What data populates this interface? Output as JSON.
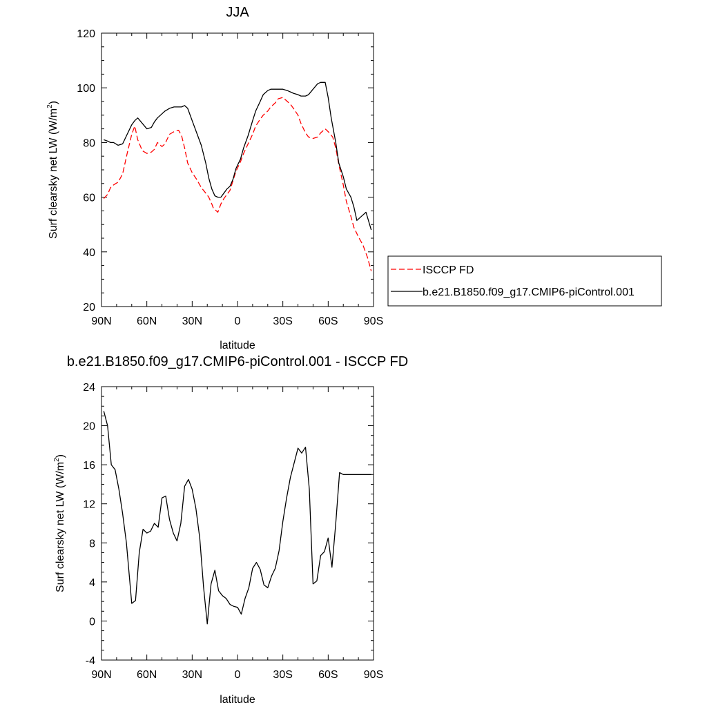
{
  "chart_data": [
    {
      "type": "line",
      "title": "JJA",
      "xlabel": "latitude",
      "ylabel": "Surf clearsky net LW (W/m",
      "ylabel_sup": "2",
      "ylabel_end": ")",
      "xlim": [
        90,
        -90
      ],
      "ylim": [
        20,
        120
      ],
      "x_ticks": [
        90,
        60,
        30,
        0,
        -30,
        -60,
        -90
      ],
      "x_tick_labels": [
        "90N",
        "60N",
        "30N",
        "0",
        "30S",
        "60S",
        "90S"
      ],
      "y_ticks": [
        20,
        40,
        60,
        80,
        100,
        120
      ],
      "y_tick_labels": [
        "20",
        "40",
        "60",
        "80",
        "100",
        "120"
      ],
      "legend_position": "right",
      "series": [
        {
          "name": "ISCCP FD",
          "color": "#ff0000",
          "style": "dashed",
          "points": [
            [
              88.5,
              59.5
            ],
            [
              86,
              61
            ],
            [
              84,
              63.5
            ],
            [
              82,
              64.5
            ],
            [
              79,
              65.5
            ],
            [
              76,
              68.5
            ],
            [
              73,
              76
            ],
            [
              70,
              83
            ],
            [
              68,
              86
            ],
            [
              66,
              81
            ],
            [
              63,
              77
            ],
            [
              60,
              76
            ],
            [
              57,
              76.5
            ],
            [
              55,
              77.5
            ],
            [
              53,
              80
            ],
            [
              50,
              78.5
            ],
            [
              48,
              79.5
            ],
            [
              45,
              83
            ],
            [
              42,
              84
            ],
            [
              39,
              84.5
            ],
            [
              37,
              82.5
            ],
            [
              35,
              78
            ],
            [
              33,
              72.5
            ],
            [
              30,
              69
            ],
            [
              27,
              66.5
            ],
            [
              24,
              63.5
            ],
            [
              21,
              61.5
            ],
            [
              19,
              60
            ],
            [
              17,
              57.5
            ],
            [
              16,
              56
            ],
            [
              13,
              54.5
            ],
            [
              11,
              57.5
            ],
            [
              9,
              59.5
            ],
            [
              7,
              61
            ],
            [
              5,
              62.5
            ],
            [
              3,
              66
            ],
            [
              1,
              69.5
            ],
            [
              -2,
              73
            ],
            [
              -4,
              76
            ],
            [
              -7,
              79.5
            ],
            [
              -10,
              83
            ],
            [
              -12,
              86
            ],
            [
              -15,
              88.5
            ],
            [
              -17,
              90
            ],
            [
              -20,
              91.5
            ],
            [
              -22,
              93
            ],
            [
              -25,
              94.5
            ],
            [
              -27,
              96
            ],
            [
              -30,
              96.5
            ],
            [
              -33,
              95
            ],
            [
              -35,
              94
            ],
            [
              -37,
              92.5
            ],
            [
              -40,
              90
            ],
            [
              -42,
              87
            ],
            [
              -45,
              83.5
            ],
            [
              -47,
              82
            ],
            [
              -50,
              81.5
            ],
            [
              -53,
              82
            ],
            [
              -55,
              83.5
            ],
            [
              -58,
              85
            ],
            [
              -60,
              84
            ],
            [
              -63,
              82
            ],
            [
              -65,
              78
            ],
            [
              -67,
              72
            ],
            [
              -70,
              64.5
            ],
            [
              -72,
              58.5
            ],
            [
              -75,
              53
            ],
            [
              -77,
              49
            ],
            [
              -80,
              45.5
            ],
            [
              -83,
              42.5
            ],
            [
              -86,
              38
            ],
            [
              -88.5,
              33
            ]
          ]
        },
        {
          "name": "b.e21.B1850.f09_g17.CMIP6-piControl.001",
          "color": "#000000",
          "style": "solid",
          "points": [
            [
              88.5,
              81
            ],
            [
              86,
              80.5
            ],
            [
              84,
              80
            ],
            [
              82,
              80
            ],
            [
              79,
              79
            ],
            [
              76,
              79.5
            ],
            [
              73,
              83
            ],
            [
              70,
              86.5
            ],
            [
              68,
              88
            ],
            [
              66,
              89
            ],
            [
              63,
              87
            ],
            [
              60,
              85
            ],
            [
              57,
              85.5
            ],
            [
              55,
              87.5
            ],
            [
              53,
              89
            ],
            [
              50,
              90.5
            ],
            [
              48,
              91.5
            ],
            [
              45,
              92.5
            ],
            [
              42,
              93
            ],
            [
              39,
              93
            ],
            [
              37,
              93
            ],
            [
              35,
              93.5
            ],
            [
              33,
              92.5
            ],
            [
              30,
              88
            ],
            [
              27,
              83.5
            ],
            [
              24,
              79
            ],
            [
              21,
              72.5
            ],
            [
              19,
              67
            ],
            [
              17,
              63
            ],
            [
              15,
              60.5
            ],
            [
              13,
              60
            ],
            [
              11,
              60
            ],
            [
              9,
              61.5
            ],
            [
              7,
              63
            ],
            [
              5,
              64
            ],
            [
              3,
              66.5
            ],
            [
              1,
              70.5
            ],
            [
              -2,
              74
            ],
            [
              -4,
              78
            ],
            [
              -7,
              82.5
            ],
            [
              -10,
              88
            ],
            [
              -12,
              91.5
            ],
            [
              -15,
              95
            ],
            [
              -17,
              97.5
            ],
            [
              -20,
              99
            ],
            [
              -22,
              99.5
            ],
            [
              -25,
              99.5
            ],
            [
              -27,
              99.5
            ],
            [
              -30,
              99.5
            ],
            [
              -33,
              99
            ],
            [
              -35,
              98.5
            ],
            [
              -37,
              98
            ],
            [
              -40,
              97.5
            ],
            [
              -42,
              97
            ],
            [
              -45,
              97
            ],
            [
              -47,
              97.5
            ],
            [
              -50,
              99.5
            ],
            [
              -53,
              101.5
            ],
            [
              -55,
              102
            ],
            [
              -58,
              102
            ],
            [
              -60,
              96.5
            ],
            [
              -62,
              89
            ],
            [
              -65,
              80
            ],
            [
              -67,
              72.5
            ],
            [
              -70,
              67.5
            ],
            [
              -72,
              63
            ],
            [
              -75,
              60
            ],
            [
              -77,
              56.5
            ],
            [
              -79,
              51.5
            ],
            [
              -82,
              53
            ],
            [
              -85,
              54.5
            ],
            [
              -88.5,
              48
            ]
          ]
        }
      ]
    },
    {
      "type": "line",
      "title": "b.e21.B1850.f09_g17.CMIP6-piControl.001 - ISCCP FD",
      "xlabel": "latitude",
      "ylabel": "Surf clearsky net LW (W/m",
      "ylabel_sup": "2",
      "ylabel_end": ")",
      "xlim": [
        90,
        -90
      ],
      "ylim": [
        -4,
        24
      ],
      "x_ticks": [
        90,
        60,
        30,
        0,
        -30,
        -60,
        -90
      ],
      "x_tick_labels": [
        "90N",
        "60N",
        "30N",
        "0",
        "30S",
        "60S",
        "90S"
      ],
      "y_ticks": [
        -4,
        0,
        4,
        8,
        12,
        16,
        20,
        24
      ],
      "y_tick_labels": [
        "-4",
        "0",
        "4",
        "8",
        "12",
        "16",
        "20",
        "24"
      ],
      "series": [
        {
          "color": "#000000",
          "style": "solid",
          "points": [
            [
              88.5,
              21.5
            ],
            [
              86,
              20
            ],
            [
              83.5,
              16
            ],
            [
              81,
              15.5
            ],
            [
              78.5,
              13.5
            ],
            [
              76,
              11
            ],
            [
              73.5,
              8
            ],
            [
              70,
              1.8
            ],
            [
              67.5,
              2.1
            ],
            [
              65,
              7
            ],
            [
              62.5,
              9.4
            ],
            [
              60,
              9
            ],
            [
              57.5,
              9.2
            ],
            [
              55,
              10
            ],
            [
              52.5,
              9.6
            ],
            [
              50,
              12.6
            ],
            [
              47.5,
              12.8
            ],
            [
              45,
              10.4
            ],
            [
              42.5,
              9
            ],
            [
              40,
              8.2
            ],
            [
              37.5,
              10
            ],
            [
              35,
              13.8
            ],
            [
              32.5,
              14.5
            ],
            [
              30,
              13.5
            ],
            [
              27.5,
              11.5
            ],
            [
              25,
              8.5
            ],
            [
              22.5,
              3.5
            ],
            [
              20,
              -0.3
            ],
            [
              17.5,
              3.8
            ],
            [
              15,
              5.2
            ],
            [
              12.5,
              3.1
            ],
            [
              10,
              2.6
            ],
            [
              7.5,
              2.3
            ],
            [
              5,
              1.7
            ],
            [
              2.5,
              1.5
            ],
            [
              0,
              1.4
            ],
            [
              -2.5,
              0.7
            ],
            [
              -5,
              2.3
            ],
            [
              -7.5,
              3.4
            ],
            [
              -10,
              5.4
            ],
            [
              -12.5,
              6
            ],
            [
              -15,
              5.3
            ],
            [
              -17.5,
              3.7
            ],
            [
              -20,
              3.4
            ],
            [
              -22.5,
              4.6
            ],
            [
              -25,
              5.4
            ],
            [
              -27.5,
              7.2
            ],
            [
              -30,
              10.2
            ],
            [
              -32.5,
              12.6
            ],
            [
              -35,
              14.7
            ],
            [
              -37.5,
              16.2
            ],
            [
              -40,
              17.7
            ],
            [
              -42.5,
              17.2
            ],
            [
              -45,
              17.8
            ],
            [
              -47.5,
              13.5
            ],
            [
              -50,
              3.8
            ],
            [
              -52.5,
              4.1
            ],
            [
              -55,
              6.7
            ],
            [
              -57.5,
              7.1
            ],
            [
              -60,
              8.5
            ],
            [
              -62.5,
              5.5
            ],
            [
              -65,
              10
            ],
            [
              -67.5,
              15.2
            ],
            [
              -70,
              15
            ],
            [
              -88.5,
              15
            ]
          ]
        }
      ]
    }
  ]
}
